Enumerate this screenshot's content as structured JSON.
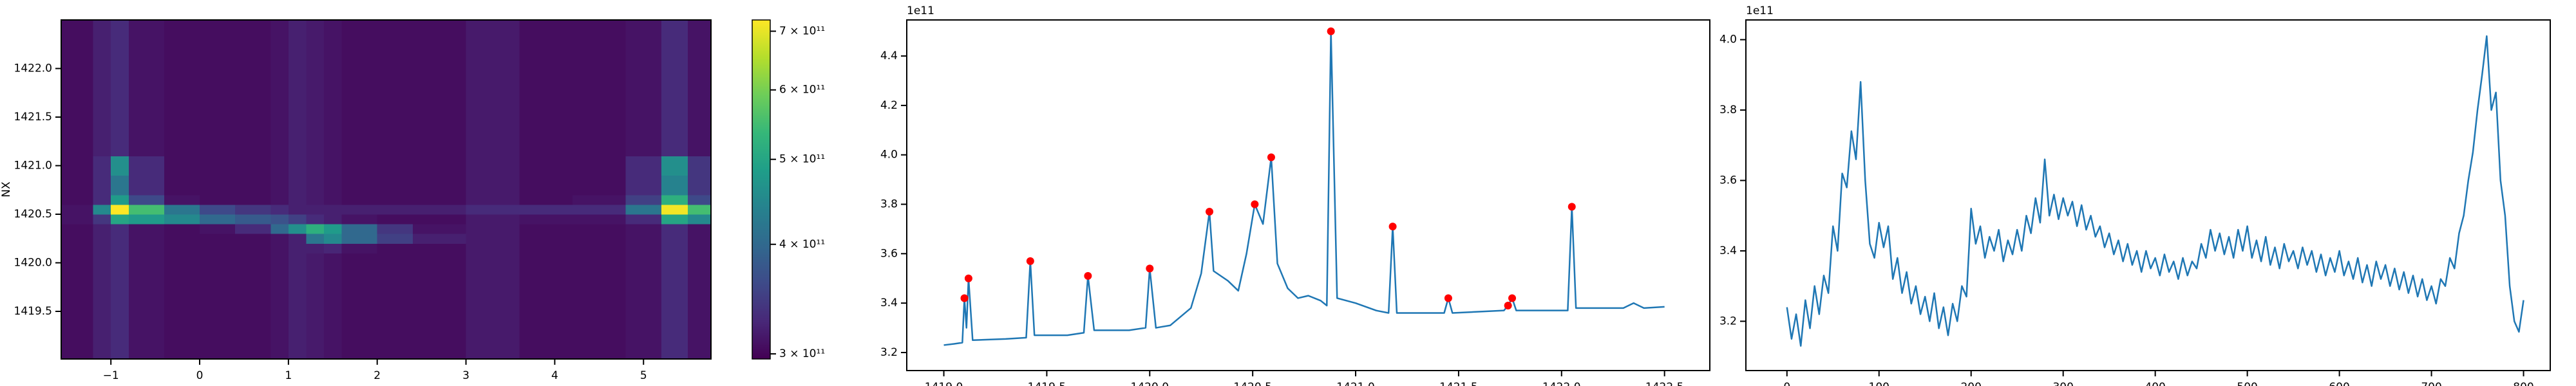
{
  "chart_data": [
    {
      "type": "heatmap",
      "ylabel": "NX",
      "xbins": [
        -1.56,
        -1.2,
        -1.0,
        -0.8,
        -0.4,
        0,
        0.4,
        0.8,
        1.0,
        1.2,
        1.4,
        1.6,
        2.0,
        2.4,
        3.0,
        3.6,
        4.2,
        4.8,
        5.2,
        5.5,
        5.76
      ],
      "ybins": [
        1419.01,
        1419.5,
        1419.9,
        1420.1,
        1420.2,
        1420.3,
        1420.4,
        1420.5,
        1420.6,
        1420.7,
        1420.9,
        1421.1,
        1421.5,
        1422.0,
        1422.5
      ],
      "z": [
        [
          305000000000.0,
          320000000000.0,
          330000000000.0,
          310000000000.0,
          305000000000.0,
          305000000000.0,
          305000000000.0,
          310000000000.0,
          320000000000.0,
          315000000000.0,
          310000000000.0,
          305000000000.0,
          305000000000.0,
          305000000000.0,
          315000000000.0,
          305000000000.0,
          305000000000.0,
          310000000000.0,
          330000000000.0,
          310000000000.0
        ],
        [
          305000000000.0,
          320000000000.0,
          330000000000.0,
          310000000000.0,
          305000000000.0,
          305000000000.0,
          305000000000.0,
          310000000000.0,
          320000000000.0,
          315000000000.0,
          310000000000.0,
          305000000000.0,
          305000000000.0,
          305000000000.0,
          315000000000.0,
          305000000000.0,
          305000000000.0,
          310000000000.0,
          330000000000.0,
          310000000000.0
        ],
        [
          305000000000.0,
          320000000000.0,
          330000000000.0,
          310000000000.0,
          305000000000.0,
          305000000000.0,
          305000000000.0,
          310000000000.0,
          320000000000.0,
          315000000000.0,
          310000000000.0,
          305000000000.0,
          305000000000.0,
          305000000000.0,
          315000000000.0,
          305000000000.0,
          305000000000.0,
          310000000000.0,
          330000000000.0,
          310000000000.0
        ],
        [
          305000000000.0,
          320000000000.0,
          330000000000.0,
          310000000000.0,
          305000000000.0,
          305000000000.0,
          305000000000.0,
          310000000000.0,
          320000000000.0,
          320000000000.0,
          325000000000.0,
          310000000000.0,
          305000000000.0,
          305000000000.0,
          315000000000.0,
          305000000000.0,
          305000000000.0,
          310000000000.0,
          330000000000.0,
          310000000000.0
        ],
        [
          305000000000.0,
          320000000000.0,
          330000000000.0,
          310000000000.0,
          305000000000.0,
          305000000000.0,
          305000000000.0,
          310000000000.0,
          320000000000.0,
          420000000000.0,
          450000000000.0,
          400000000000.0,
          350000000000.0,
          320000000000.0,
          315000000000.0,
          305000000000.0,
          305000000000.0,
          310000000000.0,
          330000000000.0,
          310000000000.0
        ],
        [
          305000000000.0,
          320000000000.0,
          330000000000.0,
          310000000000.0,
          305000000000.0,
          310000000000.0,
          330000000000.0,
          400000000000.0,
          460000000000.0,
          520000000000.0,
          480000000000.0,
          400000000000.0,
          340000000000.0,
          310000000000.0,
          315000000000.0,
          305000000000.0,
          305000000000.0,
          310000000000.0,
          330000000000.0,
          310000000000.0
        ],
        [
          310000000000.0,
          340000000000.0,
          500000000000.0,
          480000000000.0,
          450000000000.0,
          400000000000.0,
          380000000000.0,
          370000000000.0,
          350000000000.0,
          330000000000.0,
          320000000000.0,
          310000000000.0,
          305000000000.0,
          305000000000.0,
          315000000000.0,
          310000000000.0,
          310000000000.0,
          330000000000.0,
          500000000000.0,
          450000000000.0
        ],
        [
          310000000000.0,
          450000000000.0,
          720000000000.0,
          550000000000.0,
          420000000000.0,
          360000000000.0,
          340000000000.0,
          330000000000.0,
          320000000000.0,
          320000000000.0,
          320000000000.0,
          320000000000.0,
          320000000000.0,
          320000000000.0,
          330000000000.0,
          330000000000.0,
          330000000000.0,
          420000000000.0,
          710000000000.0,
          550000000000.0
        ],
        [
          305000000000.0,
          330000000000.0,
          480000000000.0,
          360000000000.0,
          310000000000.0,
          305000000000.0,
          305000000000.0,
          310000000000.0,
          320000000000.0,
          315000000000.0,
          310000000000.0,
          305000000000.0,
          305000000000.0,
          305000000000.0,
          315000000000.0,
          305000000000.0,
          310000000000.0,
          350000000000.0,
          520000000000.0,
          360000000000.0
        ],
        [
          305000000000.0,
          330000000000.0,
          420000000000.0,
          330000000000.0,
          305000000000.0,
          305000000000.0,
          305000000000.0,
          310000000000.0,
          320000000000.0,
          315000000000.0,
          310000000000.0,
          305000000000.0,
          305000000000.0,
          305000000000.0,
          315000000000.0,
          305000000000.0,
          305000000000.0,
          330000000000.0,
          440000000000.0,
          340000000000.0
        ],
        [
          305000000000.0,
          330000000000.0,
          460000000000.0,
          330000000000.0,
          305000000000.0,
          305000000000.0,
          305000000000.0,
          310000000000.0,
          320000000000.0,
          315000000000.0,
          310000000000.0,
          305000000000.0,
          305000000000.0,
          305000000000.0,
          315000000000.0,
          305000000000.0,
          305000000000.0,
          330000000000.0,
          460000000000.0,
          340000000000.0
        ],
        [
          305000000000.0,
          320000000000.0,
          330000000000.0,
          310000000000.0,
          305000000000.0,
          305000000000.0,
          305000000000.0,
          310000000000.0,
          320000000000.0,
          315000000000.0,
          310000000000.0,
          305000000000.0,
          305000000000.0,
          305000000000.0,
          315000000000.0,
          305000000000.0,
          305000000000.0,
          310000000000.0,
          330000000000.0,
          310000000000.0
        ],
        [
          305000000000.0,
          320000000000.0,
          330000000000.0,
          310000000000.0,
          305000000000.0,
          305000000000.0,
          305000000000.0,
          310000000000.0,
          320000000000.0,
          315000000000.0,
          310000000000.0,
          305000000000.0,
          305000000000.0,
          305000000000.0,
          315000000000.0,
          305000000000.0,
          305000000000.0,
          310000000000.0,
          330000000000.0,
          310000000000.0
        ],
        [
          305000000000.0,
          320000000000.0,
          330000000000.0,
          310000000000.0,
          305000000000.0,
          305000000000.0,
          305000000000.0,
          310000000000.0,
          320000000000.0,
          315000000000.0,
          310000000000.0,
          305000000000.0,
          305000000000.0,
          305000000000.0,
          315000000000.0,
          305000000000.0,
          305000000000.0,
          310000000000.0,
          330000000000.0,
          310000000000.0
        ]
      ],
      "xlim": [
        -1.56,
        5.76
      ],
      "ylim": [
        1419.01,
        1422.5
      ],
      "xticks": [
        {
          "value": -1,
          "label": "−1"
        },
        0,
        1,
        2,
        3,
        4,
        5
      ],
      "yticks": [
        1419.5,
        {
          "value": 1420,
          "label": "1420.0"
        },
        1420.5,
        {
          "value": 1421,
          "label": "1421.0"
        },
        1421.5,
        {
          "value": 1422,
          "label": "1422.0"
        }
      ],
      "colormap": "viridis",
      "clim": [
        296000000000.0,
        721000000000.0
      ],
      "c_scale": "log",
      "cticks": [
        {
          "value": 300000000000.0,
          "label": "3 × 10¹¹"
        },
        {
          "value": 400000000000.0,
          "label": "4 × 10¹¹"
        },
        {
          "value": 500000000000.0,
          "label": "5 × 10¹¹"
        },
        {
          "value": 600000000000.0,
          "label": "6 × 10¹¹"
        },
        {
          "value": 700000000000.0,
          "label": "7 × 10¹¹"
        }
      ]
    },
    {
      "type": "line",
      "y_offset_label": "1e11",
      "xlim": [
        1418.82,
        1422.72
      ],
      "ylim": [
        3.127,
        4.546
      ],
      "xticks": [
        {
          "value": 1419,
          "label": "1419.0"
        },
        1419.5,
        {
          "value": 1420,
          "label": "1420.0"
        },
        1420.5,
        {
          "value": 1421,
          "label": "1421.0"
        },
        1421.5,
        {
          "value": 1422,
          "label": "1422.0"
        },
        1422.5
      ],
      "yticks": [
        3.2,
        3.4,
        3.6,
        3.8,
        {
          "value": 4,
          "label": "4.0"
        },
        4.2,
        4.4
      ],
      "series": [
        {
          "color": "#1f77b4",
          "mode": "lines",
          "x": [
            1419.0,
            1419.05,
            1419.09,
            1419.1,
            1419.11,
            1419.12,
            1419.14,
            1419.3,
            1419.4,
            1419.42,
            1419.44,
            1419.6,
            1419.68,
            1419.7,
            1419.73,
            1419.9,
            1419.98,
            1420.0,
            1420.03,
            1420.1,
            1420.2,
            1420.25,
            1420.29,
            1420.31,
            1420.38,
            1420.43,
            1420.47,
            1420.51,
            1420.55,
            1420.59,
            1420.62,
            1420.67,
            1420.72,
            1420.77,
            1420.83,
            1420.86,
            1420.88,
            1420.91,
            1421.0,
            1421.1,
            1421.16,
            1421.18,
            1421.2,
            1421.43,
            1421.45,
            1421.47,
            1421.72,
            1421.74,
            1421.76,
            1421.78,
            1422.03,
            1422.05,
            1422.07,
            1422.3,
            1422.35,
            1422.4,
            1422.5
          ],
          "values": [
            3.23,
            3.235,
            3.24,
            3.42,
            3.3,
            3.5,
            3.25,
            3.255,
            3.26,
            3.57,
            3.27,
            3.27,
            3.28,
            3.51,
            3.29,
            3.29,
            3.3,
            3.54,
            3.3,
            3.31,
            3.38,
            3.52,
            3.77,
            3.53,
            3.49,
            3.45,
            3.6,
            3.8,
            3.72,
            3.99,
            3.56,
            3.46,
            3.42,
            3.43,
            3.41,
            3.39,
            4.5,
            3.42,
            3.4,
            3.37,
            3.36,
            3.71,
            3.36,
            3.36,
            3.42,
            3.36,
            3.37,
            3.39,
            3.42,
            3.37,
            3.37,
            3.79,
            3.38,
            3.38,
            3.4,
            3.38,
            3.385
          ]
        },
        {
          "color": "#ff0000",
          "mode": "markers",
          "x": [
            1419.1,
            1419.12,
            1419.42,
            1419.7,
            1420.0,
            1420.29,
            1420.51,
            1420.59,
            1420.88,
            1421.18,
            1421.45,
            1421.74,
            1421.76,
            1422.05
          ],
          "values": [
            3.42,
            3.5,
            3.57,
            3.51,
            3.54,
            3.77,
            3.8,
            3.99,
            4.5,
            3.71,
            3.42,
            3.39,
            3.42,
            3.79
          ]
        }
      ]
    },
    {
      "type": "line",
      "y_offset_label": "1e11",
      "xlim": [
        -44.6,
        829
      ],
      "ylim": [
        3.06,
        4.056
      ],
      "xticks": [
        0,
        100,
        200,
        300,
        400,
        500,
        600,
        700,
        800
      ],
      "yticks": [
        3.2,
        3.4,
        3.6,
        3.8,
        {
          "value": 4,
          "label": "4.0"
        }
      ],
      "series": [
        {
          "color": "#1f77b4",
          "mode": "lines",
          "x": [
            0,
            5,
            10,
            15,
            20,
            25,
            30,
            35,
            40,
            45,
            50,
            55,
            60,
            65,
            70,
            75,
            80,
            85,
            90,
            95,
            100,
            105,
            110,
            115,
            120,
            125,
            130,
            135,
            140,
            145,
            150,
            155,
            160,
            165,
            170,
            175,
            180,
            185,
            190,
            195,
            200,
            205,
            210,
            215,
            220,
            225,
            230,
            235,
            240,
            245,
            250,
            255,
            260,
            265,
            270,
            275,
            280,
            285,
            290,
            295,
            300,
            305,
            310,
            315,
            320,
            325,
            330,
            335,
            340,
            345,
            350,
            355,
            360,
            365,
            370,
            375,
            380,
            385,
            390,
            395,
            400,
            405,
            410,
            415,
            420,
            425,
            430,
            435,
            440,
            445,
            450,
            455,
            460,
            465,
            470,
            475,
            480,
            485,
            490,
            495,
            500,
            505,
            510,
            515,
            520,
            525,
            530,
            535,
            540,
            545,
            550,
            555,
            560,
            565,
            570,
            575,
            580,
            585,
            590,
            595,
            600,
            605,
            610,
            615,
            620,
            625,
            630,
            635,
            640,
            645,
            650,
            655,
            660,
            665,
            670,
            675,
            680,
            685,
            690,
            695,
            700,
            705,
            710,
            715,
            720,
            725,
            730,
            735,
            740,
            745,
            750,
            755,
            760,
            765,
            770,
            775,
            780,
            785,
            790,
            795,
            800
          ],
          "values": [
            3.24,
            3.15,
            3.22,
            3.13,
            3.26,
            3.18,
            3.3,
            3.22,
            3.33,
            3.28,
            3.47,
            3.4,
            3.62,
            3.58,
            3.74,
            3.66,
            3.88,
            3.6,
            3.42,
            3.38,
            3.48,
            3.41,
            3.47,
            3.32,
            3.38,
            3.28,
            3.34,
            3.25,
            3.3,
            3.22,
            3.27,
            3.2,
            3.28,
            3.18,
            3.24,
            3.16,
            3.25,
            3.2,
            3.3,
            3.27,
            3.52,
            3.42,
            3.47,
            3.38,
            3.44,
            3.4,
            3.46,
            3.37,
            3.43,
            3.39,
            3.46,
            3.4,
            3.5,
            3.45,
            3.55,
            3.48,
            3.66,
            3.5,
            3.56,
            3.49,
            3.55,
            3.5,
            3.54,
            3.47,
            3.53,
            3.46,
            3.5,
            3.44,
            3.47,
            3.41,
            3.45,
            3.39,
            3.43,
            3.37,
            3.42,
            3.36,
            3.4,
            3.34,
            3.4,
            3.35,
            3.38,
            3.33,
            3.39,
            3.34,
            3.37,
            3.32,
            3.38,
            3.33,
            3.37,
            3.35,
            3.42,
            3.38,
            3.46,
            3.4,
            3.45,
            3.39,
            3.44,
            3.38,
            3.46,
            3.4,
            3.47,
            3.38,
            3.43,
            3.37,
            3.44,
            3.36,
            3.41,
            3.35,
            3.42,
            3.37,
            3.4,
            3.35,
            3.41,
            3.36,
            3.4,
            3.34,
            3.39,
            3.33,
            3.38,
            3.34,
            3.4,
            3.33,
            3.37,
            3.32,
            3.38,
            3.31,
            3.36,
            3.3,
            3.37,
            3.32,
            3.36,
            3.3,
            3.35,
            3.29,
            3.34,
            3.28,
            3.33,
            3.27,
            3.32,
            3.26,
            3.3,
            3.25,
            3.32,
            3.3,
            3.38,
            3.35,
            3.45,
            3.5,
            3.6,
            3.68,
            3.8,
            3.9,
            4.01,
            3.8,
            3.85,
            3.6,
            3.5,
            3.3,
            3.2,
            3.17,
            3.26
          ]
        }
      ]
    }
  ]
}
